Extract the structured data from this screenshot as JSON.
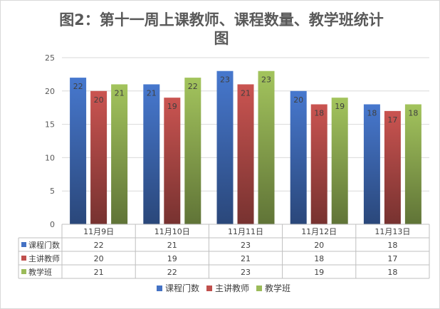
{
  "chart_data": {
    "type": "bar",
    "title": "图2：第十一周上课教师、课程数量、教学班统计图",
    "title_lines": [
      "图2：第十一周上课教师、课程数量、教学班统计",
      "图"
    ],
    "categories": [
      "11月9日",
      "11月10日",
      "11月11日",
      "11月12日",
      "11月13日"
    ],
    "series": [
      {
        "name": "课程门数",
        "values": [
          22,
          21,
          23,
          20,
          18
        ],
        "color": "#4472c4"
      },
      {
        "name": "主讲教师",
        "values": [
          20,
          19,
          21,
          18,
          17
        ],
        "color": "#c0504d"
      },
      {
        "name": "教学班",
        "values": [
          21,
          22,
          23,
          19,
          18
        ],
        "color": "#9bbb59"
      }
    ],
    "ylim": [
      0,
      25
    ],
    "yticks": [
      0,
      5,
      10,
      15,
      20,
      25
    ],
    "grid": true,
    "legend": "bottom",
    "data_table": true
  }
}
